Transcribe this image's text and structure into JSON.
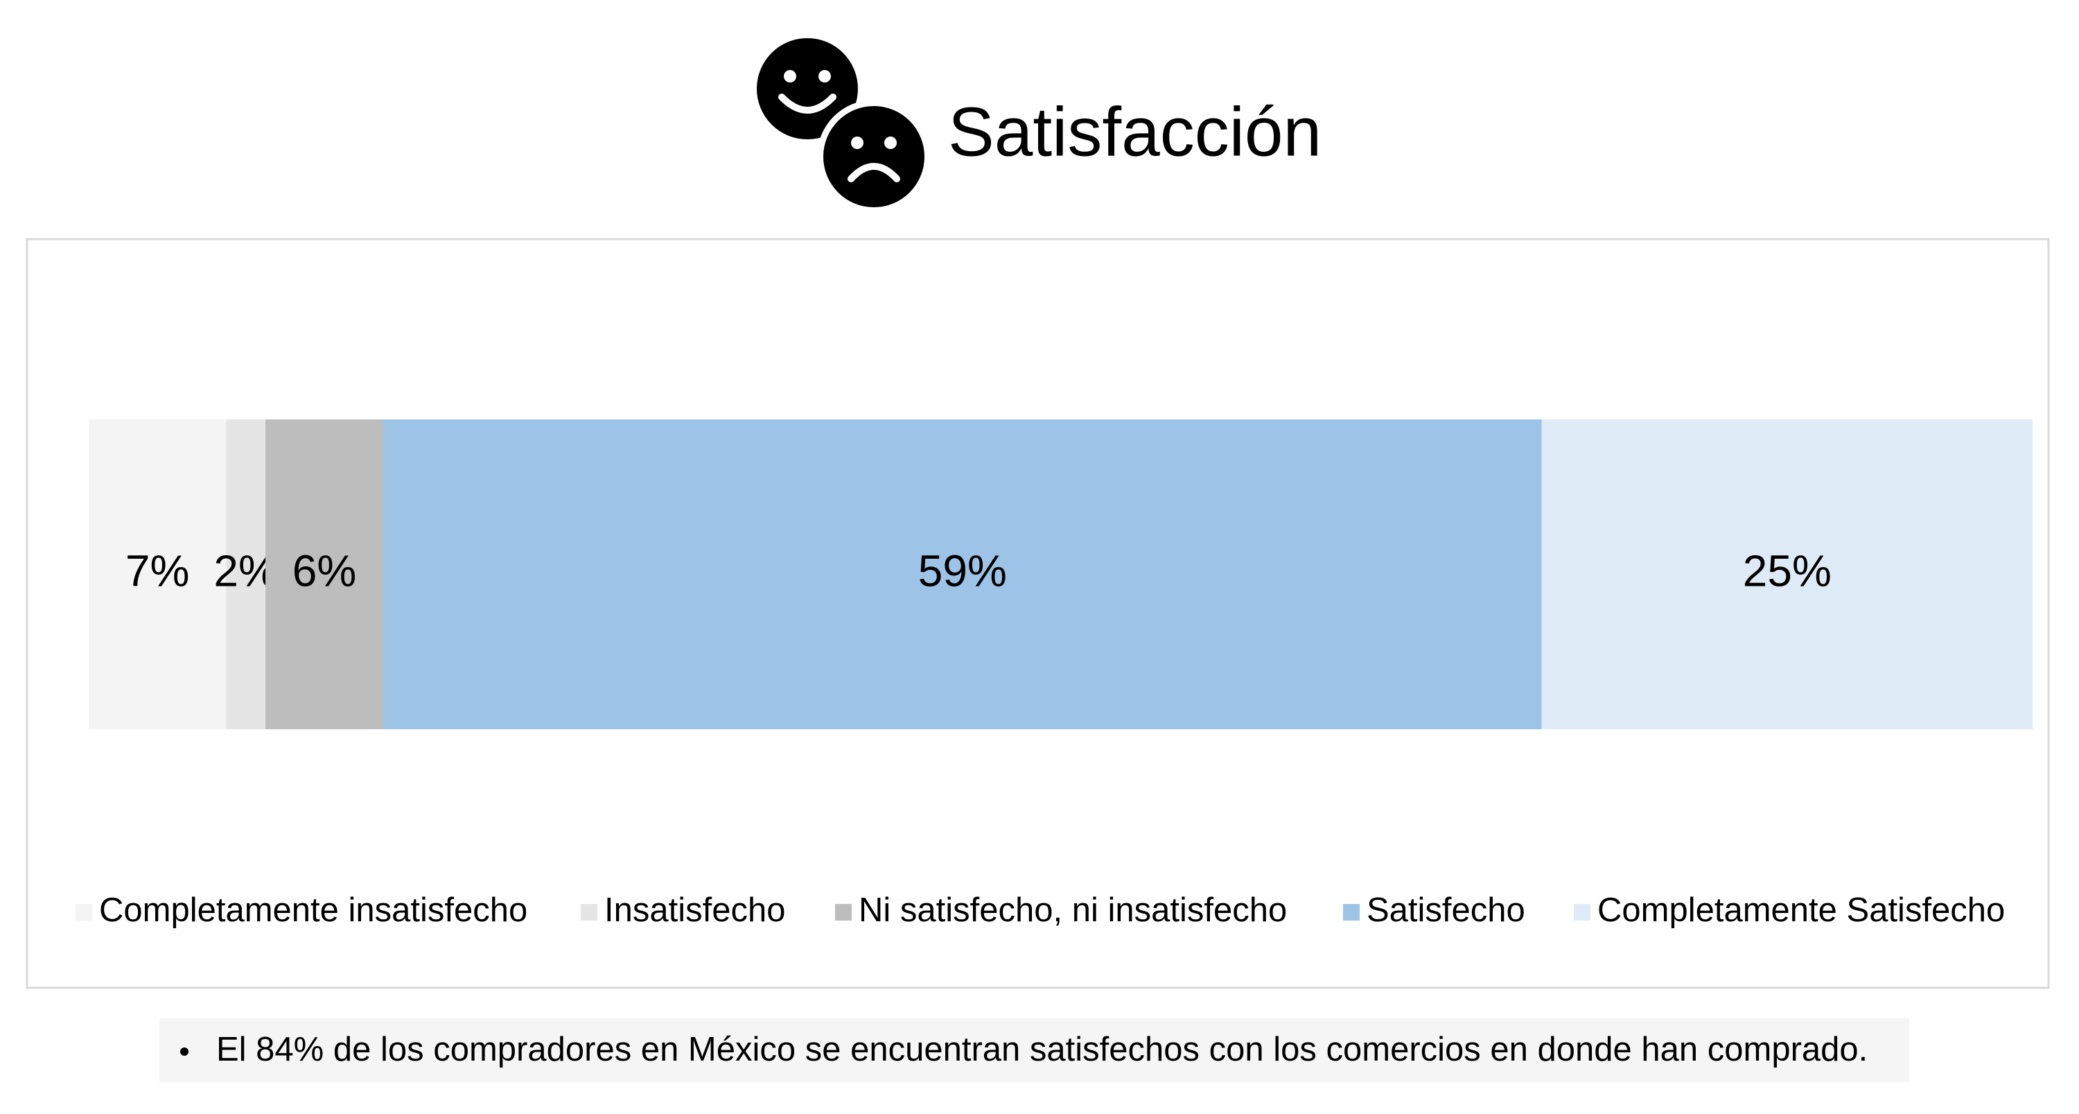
{
  "chart_data": {
    "type": "stacked-bar-100",
    "title": "Satisfacción",
    "series": [
      {
        "name": "Completamente insatisfecho",
        "color": "#f4f4f4",
        "values": [
          7
        ],
        "value_labels": [
          "7%"
        ]
      },
      {
        "name": "Insatisfecho",
        "color": "#e5e5e5",
        "values": [
          2
        ],
        "value_labels": [
          "2%"
        ]
      },
      {
        "name": "Ni satisfecho, ni insatisfecho",
        "color": "#bdbdbd",
        "values": [
          6
        ],
        "value_labels": [
          "6%"
        ]
      },
      {
        "name": "Satisfecho",
        "color": "#9dc3e6",
        "values": [
          59
        ],
        "value_labels": [
          "59%"
        ]
      },
      {
        "name": "Completamente Satisfecho",
        "color": "#deebf7",
        "values": [
          25
        ],
        "value_labels": [
          "25%"
        ]
      }
    ],
    "legend": "bottom"
  },
  "notes": [
    "El 84% de los compradores en México se encuentran satisfechos con los comercios en donde han comprado."
  ]
}
